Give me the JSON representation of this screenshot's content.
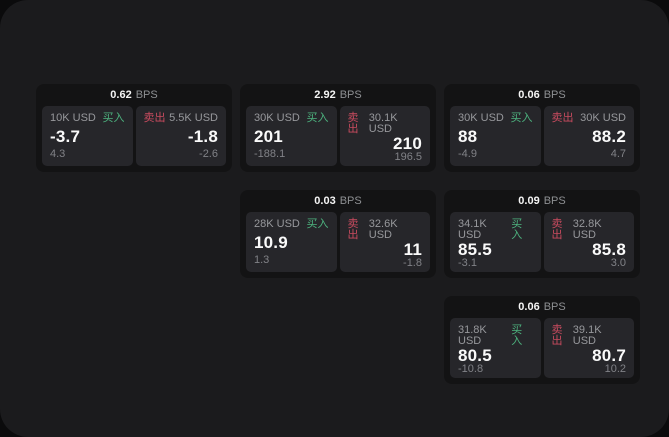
{
  "labels": {
    "bps_unit": "BPS",
    "buy": "买入",
    "sell": "卖出"
  },
  "colors": {
    "buy": "#4db37f",
    "sell": "#c94b5f",
    "panel": "#1b1b1d",
    "card": "#131314",
    "tile": "#26262a"
  },
  "cards": [
    {
      "bps": "0.62",
      "buy": {
        "amount": "10K USD",
        "price": "-3.7",
        "delta": "4.3"
      },
      "sell": {
        "amount": "5.5K USD",
        "price": "-1.8",
        "delta": "-2.6"
      }
    },
    {
      "bps": "2.92",
      "buy": {
        "amount": "30K USD",
        "price": "201",
        "delta": "-188.1"
      },
      "sell": {
        "amount": "30.1K USD",
        "price": "210",
        "delta": "196.5"
      }
    },
    {
      "bps": "0.06",
      "buy": {
        "amount": "30K USD",
        "price": "88",
        "delta": "-4.9"
      },
      "sell": {
        "amount": "30K USD",
        "price": "88.2",
        "delta": "4.7"
      }
    },
    {
      "bps": "0.03",
      "buy": {
        "amount": "28K USD",
        "price": "10.9",
        "delta": "1.3"
      },
      "sell": {
        "amount": "32.6K USD",
        "price": "11",
        "delta": "-1.8"
      }
    },
    {
      "bps": "0.09",
      "buy": {
        "amount": "34.1K USD",
        "price": "85.5",
        "delta": "-3.1"
      },
      "sell": {
        "amount": "32.8K USD",
        "price": "85.8",
        "delta": "3.0"
      }
    },
    {
      "bps": "0.06",
      "buy": {
        "amount": "31.8K USD",
        "price": "80.5",
        "delta": "-10.8"
      },
      "sell": {
        "amount": "39.1K USD",
        "price": "80.7",
        "delta": "10.2"
      }
    }
  ]
}
